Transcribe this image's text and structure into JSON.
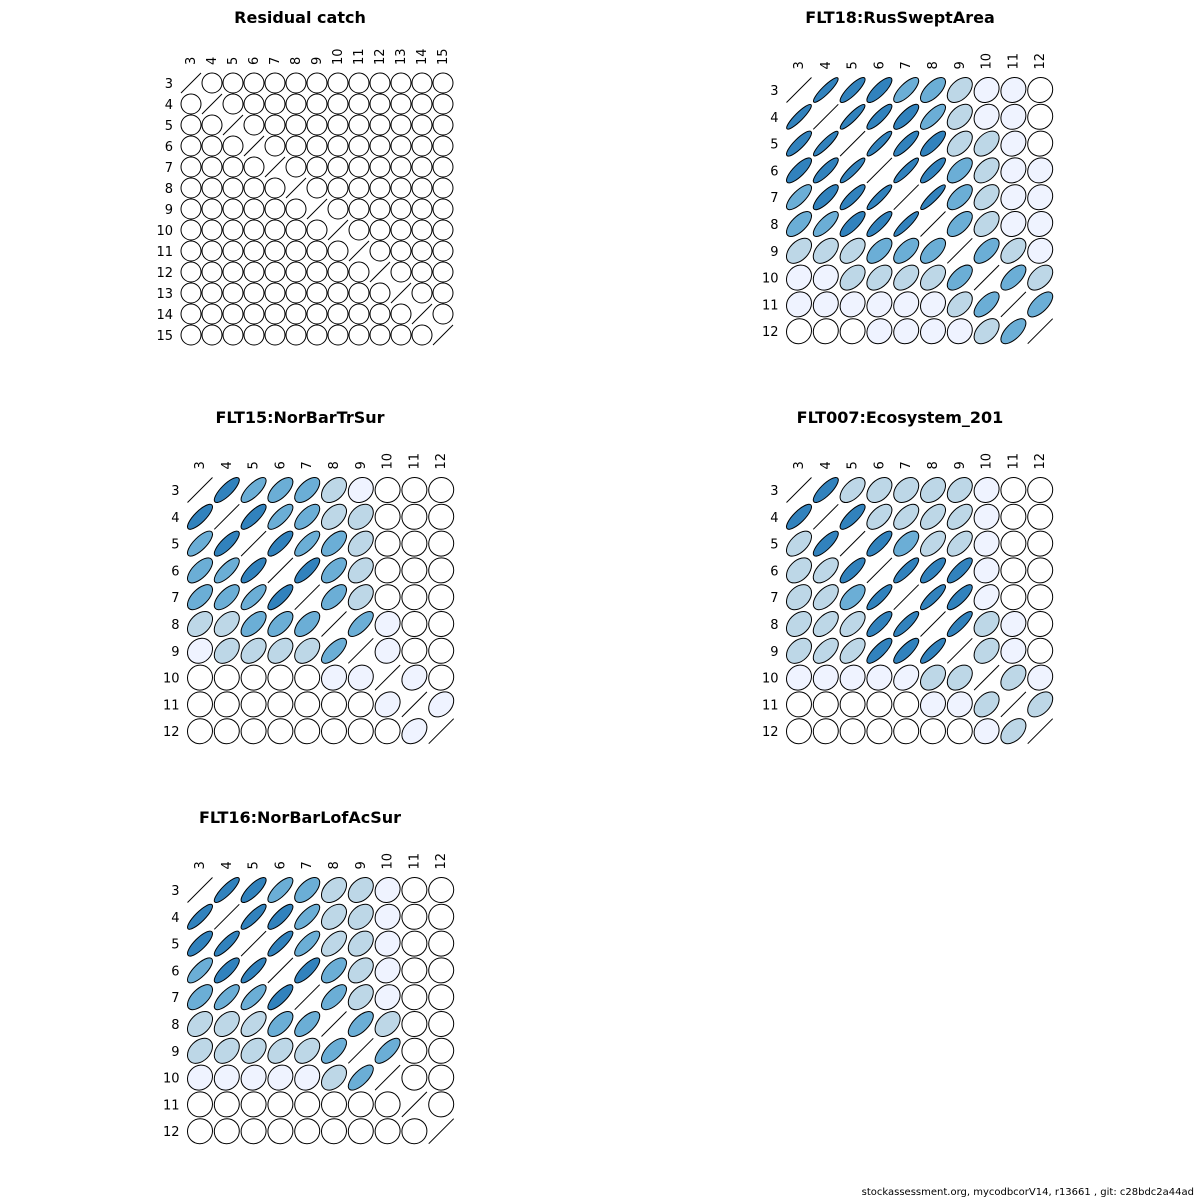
{
  "footer": "stockassessment.org, mycodbcorV14, r13661 , git: c28bdc2a44ad",
  "palette": [
    "#ffffff",
    "#eff3ff",
    "#bdd7e7",
    "#6baed6",
    "#3182bd"
  ],
  "chart_data": [
    {
      "type": "heatmap",
      "subtype": "correlation-ellipse",
      "title": "Residual catch",
      "labels": [
        "3",
        "4",
        "5",
        "6",
        "7",
        "8",
        "9",
        "10",
        "11",
        "12",
        "13",
        "14",
        "15"
      ],
      "correlation_decay": 0
    },
    {
      "type": "heatmap",
      "subtype": "correlation-ellipse",
      "title": "FLT18:RusSweptArea",
      "labels": [
        "3",
        "4",
        "5",
        "6",
        "7",
        "8",
        "9",
        "10",
        "11",
        "12"
      ],
      "matrix": [
        [
          1,
          0.9,
          0.85,
          0.8,
          0.75,
          0.65,
          0.45,
          0.15,
          0.1,
          0.05
        ],
        [
          0.9,
          1,
          0.9,
          0.85,
          0.8,
          0.75,
          0.45,
          0.15,
          0.1,
          0.05
        ],
        [
          0.85,
          0.9,
          1,
          0.9,
          0.85,
          0.8,
          0.5,
          0.45,
          0.15,
          0.05
        ],
        [
          0.8,
          0.85,
          0.9,
          1,
          0.9,
          0.85,
          0.6,
          0.45,
          0.15,
          0.1
        ],
        [
          0.75,
          0.8,
          0.85,
          0.9,
          1,
          0.9,
          0.6,
          0.45,
          0.15,
          0.1
        ],
        [
          0.65,
          0.75,
          0.8,
          0.85,
          0.9,
          1,
          0.6,
          0.45,
          0.15,
          0.1
        ],
        [
          0.45,
          0.45,
          0.5,
          0.6,
          0.6,
          0.6,
          1,
          0.6,
          0.45,
          0.1
        ],
        [
          0.15,
          0.15,
          0.45,
          0.45,
          0.45,
          0.45,
          0.6,
          1,
          0.65,
          0.45
        ],
        [
          0.1,
          0.1,
          0.15,
          0.15,
          0.15,
          0.15,
          0.45,
          0.65,
          1,
          0.65
        ],
        [
          0.05,
          0.05,
          0.05,
          0.1,
          0.1,
          0.1,
          0.1,
          0.45,
          0.65,
          1
        ]
      ]
    },
    {
      "type": "heatmap",
      "subtype": "correlation-ellipse",
      "title": "FLT15:NorBarTrSur",
      "labels": [
        "3",
        "4",
        "5",
        "6",
        "7",
        "8",
        "9",
        "10",
        "11",
        "12"
      ],
      "matrix": [
        [
          1,
          0.8,
          0.75,
          0.65,
          0.6,
          0.4,
          0.15,
          0.02,
          0.02,
          0.02
        ],
        [
          0.8,
          1,
          0.8,
          0.75,
          0.65,
          0.45,
          0.35,
          0.02,
          0.02,
          0.02
        ],
        [
          0.75,
          0.8,
          1,
          0.8,
          0.75,
          0.6,
          0.4,
          0.02,
          0.02,
          0.02
        ],
        [
          0.65,
          0.75,
          0.8,
          1,
          0.8,
          0.6,
          0.4,
          0.02,
          0.02,
          0.02
        ],
        [
          0.6,
          0.65,
          0.75,
          0.8,
          1,
          0.6,
          0.4,
          0.02,
          0.02,
          0.02
        ],
        [
          0.4,
          0.45,
          0.6,
          0.6,
          0.6,
          1,
          0.7,
          0.1,
          0.02,
          0.02
        ],
        [
          0.15,
          0.35,
          0.4,
          0.4,
          0.4,
          0.7,
          1,
          0.1,
          0.05,
          0.02
        ],
        [
          0.02,
          0.02,
          0.02,
          0.02,
          0.02,
          0.1,
          0.1,
          1,
          0.2,
          0.05
        ],
        [
          0.02,
          0.02,
          0.02,
          0.02,
          0.02,
          0.02,
          0.05,
          0.2,
          1,
          0.3
        ],
        [
          0.02,
          0.02,
          0.02,
          0.02,
          0.02,
          0.02,
          0.02,
          0.05,
          0.3,
          1
        ]
      ]
    },
    {
      "type": "heatmap",
      "subtype": "correlation-ellipse",
      "title": "FLT007:Ecosystem_201",
      "labels": [
        "3",
        "4",
        "5",
        "6",
        "7",
        "8",
        "9",
        "10",
        "11",
        "12"
      ],
      "matrix": [
        [
          1,
          0.8,
          0.55,
          0.4,
          0.35,
          0.35,
          0.35,
          0.1,
          0.02,
          0.02
        ],
        [
          0.8,
          1,
          0.8,
          0.55,
          0.55,
          0.55,
          0.55,
          0.1,
          0.02,
          0.02
        ],
        [
          0.55,
          0.8,
          1,
          0.8,
          0.6,
          0.55,
          0.55,
          0.1,
          0.02,
          0.02
        ],
        [
          0.4,
          0.55,
          0.8,
          1,
          0.85,
          0.8,
          0.8,
          0.1,
          0.02,
          0.02
        ],
        [
          0.35,
          0.55,
          0.6,
          0.85,
          1,
          0.85,
          0.8,
          0.3,
          0.02,
          0.02
        ],
        [
          0.35,
          0.55,
          0.55,
          0.8,
          0.85,
          1,
          0.85,
          0.35,
          0.1,
          0.02
        ],
        [
          0.35,
          0.55,
          0.55,
          0.8,
          0.8,
          0.85,
          1,
          0.35,
          0.1,
          0.02
        ],
        [
          0.1,
          0.1,
          0.1,
          0.1,
          0.3,
          0.35,
          0.35,
          1,
          0.4,
          0.1
        ],
        [
          0.02,
          0.02,
          0.02,
          0.02,
          0.02,
          0.1,
          0.1,
          0.4,
          1,
          0.45
        ],
        [
          0.02,
          0.02,
          0.02,
          0.02,
          0.02,
          0.02,
          0.02,
          0.1,
          0.45,
          1
        ]
      ]
    },
    {
      "type": "heatmap",
      "subtype": "correlation-ellipse",
      "title": "FLT16:NorBarLofAcSur",
      "labels": [
        "3",
        "4",
        "5",
        "6",
        "7",
        "8",
        "9",
        "10",
        "11",
        "12"
      ],
      "matrix": [
        [
          1,
          0.85,
          0.8,
          0.75,
          0.6,
          0.4,
          0.35,
          0.1,
          0.02,
          0.02
        ],
        [
          0.85,
          1,
          0.85,
          0.8,
          0.75,
          0.4,
          0.35,
          0.1,
          0.02,
          0.02
        ],
        [
          0.8,
          0.85,
          1,
          0.85,
          0.75,
          0.55,
          0.35,
          0.1,
          0.02,
          0.02
        ],
        [
          0.75,
          0.8,
          0.85,
          1,
          0.8,
          0.6,
          0.4,
          0.15,
          0.02,
          0.02
        ],
        [
          0.6,
          0.75,
          0.75,
          0.8,
          1,
          0.65,
          0.4,
          0.15,
          0.02,
          0.02
        ],
        [
          0.4,
          0.4,
          0.55,
          0.6,
          0.65,
          1,
          0.65,
          0.4,
          0.02,
          0.02
        ],
        [
          0.35,
          0.35,
          0.35,
          0.4,
          0.4,
          0.65,
          1,
          0.7,
          0.02,
          0.02
        ],
        [
          0.1,
          0.1,
          0.1,
          0.15,
          0.15,
          0.4,
          0.7,
          1,
          0.02,
          0.02
        ],
        [
          0.02,
          0.02,
          0.02,
          0.02,
          0.02,
          0.02,
          0.02,
          0.02,
          1,
          0.02
        ],
        [
          0.02,
          0.02,
          0.02,
          0.02,
          0.02,
          0.02,
          0.02,
          0.02,
          0.02,
          1
        ]
      ]
    }
  ]
}
